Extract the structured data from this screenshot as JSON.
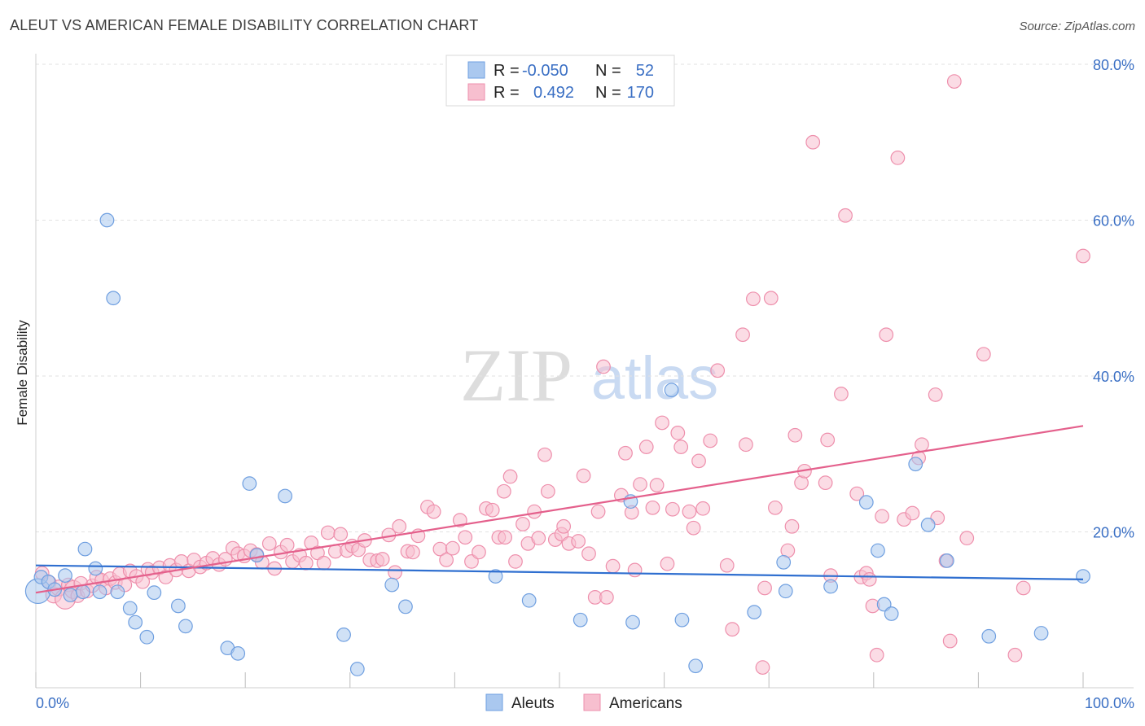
{
  "header": {
    "title": "ALEUT VS AMERICAN FEMALE DISABILITY CORRELATION CHART",
    "source": "Source: ZipAtlas.com"
  },
  "watermark": {
    "zip": "ZIP",
    "atlas": "atlas"
  },
  "colors": {
    "aleut_fill": "#aac8ef",
    "aleut_stroke": "#6f9fe0",
    "aleut_line": "#2f6fd0",
    "american_fill": "#f7bfcf",
    "american_stroke": "#ee8fac",
    "american_line": "#e4608c",
    "tick_label": "#3a6fc4"
  },
  "legend": {
    "rows": [
      {
        "r_label": "R =",
        "r_value": "-0.050",
        "n_label": "N =",
        "n_value": "52"
      },
      {
        "r_label": "R =",
        "r_value": "0.492",
        "n_label": "N =",
        "n_value": "170"
      }
    ]
  },
  "bottom_legend": {
    "aleuts": "Aleuts",
    "americans": "Americans"
  },
  "chart_data": {
    "type": "scatter",
    "title": "ALEUT VS AMERICAN FEMALE DISABILITY CORRELATION CHART",
    "xlabel": "",
    "ylabel": "Female Disability",
    "xlim": [
      0,
      100
    ],
    "ylim": [
      0,
      80
    ],
    "x_tick_labels": [
      "0.0%",
      "100.0%"
    ],
    "y_ticks": [
      20,
      40,
      60,
      80
    ],
    "y_tick_labels": [
      "20.0%",
      "40.0%",
      "60.0%",
      "80.0%"
    ],
    "grid": true,
    "legend_position": "top-center",
    "series": [
      {
        "name": "Aleuts",
        "r": -0.05,
        "n": 52,
        "trend": {
          "x": [
            0,
            100
          ],
          "y": [
            15.7,
            13.9
          ]
        },
        "points": [
          [
            0.2,
            12.4,
            22
          ],
          [
            0.5,
            14.2,
            12
          ],
          [
            1.2,
            13.6,
            12
          ],
          [
            1.8,
            12.6,
            12
          ],
          [
            2.8,
            14.4,
            12
          ],
          [
            3.3,
            11.9,
            12
          ],
          [
            4.5,
            12.3,
            12
          ],
          [
            4.7,
            17.8,
            12
          ],
          [
            5.7,
            15.3,
            12
          ],
          [
            6.1,
            12.3,
            12
          ],
          [
            6.8,
            60.0,
            12
          ],
          [
            7.4,
            50.0,
            12
          ],
          [
            7.8,
            12.3,
            12
          ],
          [
            9.0,
            10.2,
            12
          ],
          [
            9.5,
            8.4,
            12
          ],
          [
            10.6,
            6.5,
            12
          ],
          [
            11.3,
            12.2,
            12
          ],
          [
            13.6,
            10.5,
            12
          ],
          [
            14.3,
            7.9,
            12
          ],
          [
            18.3,
            5.1,
            12
          ],
          [
            19.3,
            4.4,
            12
          ],
          [
            20.4,
            26.2,
            12
          ],
          [
            21.1,
            17.0,
            12
          ],
          [
            23.8,
            24.6,
            12
          ],
          [
            29.4,
            6.8,
            12
          ],
          [
            30.7,
            2.4,
            12
          ],
          [
            34.0,
            13.2,
            12
          ],
          [
            35.3,
            10.4,
            12
          ],
          [
            43.9,
            14.3,
            12
          ],
          [
            47.1,
            11.2,
            12
          ],
          [
            52.0,
            8.7,
            12
          ],
          [
            56.8,
            23.9,
            12
          ],
          [
            57.0,
            8.4,
            12
          ],
          [
            60.7,
            38.2,
            12
          ],
          [
            61.7,
            8.7,
            12
          ],
          [
            63.0,
            2.8,
            12
          ],
          [
            68.6,
            9.7,
            12
          ],
          [
            71.4,
            16.1,
            12
          ],
          [
            71.6,
            12.4,
            12
          ],
          [
            75.9,
            13.0,
            12
          ],
          [
            79.3,
            23.8,
            12
          ],
          [
            80.4,
            17.6,
            12
          ],
          [
            81.0,
            10.7,
            12
          ],
          [
            81.7,
            9.5,
            12
          ],
          [
            84.0,
            28.7,
            12
          ],
          [
            85.2,
            20.9,
            12
          ],
          [
            87.0,
            16.3,
            12
          ],
          [
            91.0,
            6.6,
            12
          ],
          [
            96.0,
            7.0,
            12
          ],
          [
            100.0,
            14.3,
            12
          ]
        ]
      },
      {
        "name": "Americans",
        "r": 0.492,
        "n": 170,
        "trend": {
          "x": [
            0,
            100
          ],
          "y": [
            12.2,
            33.6
          ]
        },
        "points": [
          [
            0.6,
            14.7,
            12
          ],
          [
            1.3,
            13.5,
            12
          ],
          [
            1.7,
            11.9,
            14
          ],
          [
            2.2,
            12.8,
            14
          ],
          [
            2.8,
            11.4,
            18
          ],
          [
            3.1,
            13.2,
            12
          ],
          [
            3.6,
            12.6,
            16
          ],
          [
            4.0,
            11.8,
            12
          ],
          [
            4.3,
            13.4,
            12
          ],
          [
            4.9,
            12.4,
            12
          ],
          [
            5.4,
            13.1,
            12
          ],
          [
            5.8,
            14.2,
            12
          ],
          [
            6.3,
            13.8,
            12
          ],
          [
            6.7,
            12.8,
            12
          ],
          [
            7.1,
            14.0,
            12
          ],
          [
            7.6,
            13.5,
            12
          ],
          [
            8.0,
            14.6,
            12
          ],
          [
            8.5,
            13.2,
            12
          ],
          [
            9.0,
            15.0,
            12
          ],
          [
            9.6,
            14.3,
            12
          ],
          [
            10.2,
            13.6,
            12
          ],
          [
            10.7,
            15.2,
            12
          ],
          [
            11.1,
            14.8,
            12
          ],
          [
            11.8,
            15.4,
            12
          ],
          [
            12.4,
            14.2,
            12
          ],
          [
            12.8,
            15.7,
            12
          ],
          [
            13.4,
            15.1,
            12
          ],
          [
            13.9,
            16.2,
            12
          ],
          [
            14.6,
            15.0,
            12
          ],
          [
            15.1,
            16.4,
            12
          ],
          [
            15.7,
            15.5,
            12
          ],
          [
            16.3,
            16.0,
            12
          ],
          [
            16.9,
            16.6,
            12
          ],
          [
            17.5,
            15.8,
            12
          ],
          [
            18.1,
            16.5,
            12
          ],
          [
            18.8,
            17.9,
            12
          ],
          [
            19.3,
            17.2,
            12
          ],
          [
            19.9,
            16.9,
            12
          ],
          [
            20.5,
            17.6,
            12
          ],
          [
            21.1,
            17.1,
            12
          ],
          [
            21.6,
            16.1,
            12
          ],
          [
            22.3,
            18.5,
            12
          ],
          [
            22.8,
            15.3,
            12
          ],
          [
            23.4,
            17.4,
            12
          ],
          [
            24.0,
            18.3,
            12
          ],
          [
            24.5,
            16.2,
            12
          ],
          [
            25.2,
            17.0,
            12
          ],
          [
            25.8,
            16.0,
            12
          ],
          [
            26.3,
            18.6,
            12
          ],
          [
            26.9,
            17.3,
            12
          ],
          [
            27.5,
            16.0,
            12
          ],
          [
            27.9,
            19.9,
            12
          ],
          [
            28.6,
            17.5,
            12
          ],
          [
            29.1,
            19.7,
            12
          ],
          [
            29.7,
            17.6,
            12
          ],
          [
            30.2,
            18.2,
            12
          ],
          [
            30.8,
            17.7,
            12
          ],
          [
            31.4,
            18.9,
            12
          ],
          [
            31.9,
            16.4,
            12
          ],
          [
            32.6,
            16.3,
            12
          ],
          [
            33.1,
            16.5,
            12
          ],
          [
            33.7,
            19.6,
            12
          ],
          [
            34.3,
            14.8,
            12
          ],
          [
            34.7,
            20.7,
            12
          ],
          [
            35.5,
            17.5,
            12
          ],
          [
            36.0,
            17.4,
            12
          ],
          [
            36.5,
            19.5,
            12
          ],
          [
            37.4,
            23.2,
            12
          ],
          [
            38.0,
            22.6,
            12
          ],
          [
            38.6,
            17.8,
            12
          ],
          [
            39.2,
            16.4,
            12
          ],
          [
            39.8,
            17.9,
            12
          ],
          [
            40.5,
            21.5,
            12
          ],
          [
            41.0,
            19.3,
            12
          ],
          [
            41.6,
            16.2,
            12
          ],
          [
            42.3,
            17.4,
            12
          ],
          [
            43.0,
            23.0,
            12
          ],
          [
            43.6,
            22.8,
            12
          ],
          [
            44.2,
            19.3,
            12
          ],
          [
            44.8,
            19.3,
            12
          ],
          [
            44.7,
            25.2,
            12
          ],
          [
            45.3,
            27.1,
            12
          ],
          [
            45.8,
            16.2,
            12
          ],
          [
            46.5,
            21.0,
            12
          ],
          [
            47.0,
            18.5,
            12
          ],
          [
            47.6,
            22.6,
            12
          ],
          [
            48.0,
            19.2,
            12
          ],
          [
            48.6,
            29.9,
            12
          ],
          [
            48.9,
            25.2,
            12
          ],
          [
            49.6,
            19.0,
            12
          ],
          [
            50.2,
            19.7,
            12
          ],
          [
            50.4,
            20.7,
            12
          ],
          [
            50.9,
            18.5,
            12
          ],
          [
            51.8,
            18.8,
            12
          ],
          [
            52.3,
            27.2,
            12
          ],
          [
            52.8,
            17.2,
            12
          ],
          [
            53.4,
            11.6,
            12
          ],
          [
            53.7,
            22.6,
            12
          ],
          [
            54.2,
            41.2,
            12
          ],
          [
            54.5,
            11.6,
            12
          ],
          [
            55.1,
            15.6,
            12
          ],
          [
            55.9,
            24.7,
            12
          ],
          [
            56.3,
            30.1,
            12
          ],
          [
            56.9,
            22.5,
            12
          ],
          [
            57.2,
            15.1,
            12
          ],
          [
            57.7,
            26.1,
            12
          ],
          [
            58.3,
            30.9,
            12
          ],
          [
            58.9,
            23.1,
            12
          ],
          [
            59.3,
            26.0,
            12
          ],
          [
            59.8,
            34.0,
            12
          ],
          [
            60.3,
            15.9,
            12
          ],
          [
            60.8,
            22.9,
            12
          ],
          [
            61.3,
            32.7,
            12
          ],
          [
            61.6,
            30.9,
            12
          ],
          [
            62.4,
            22.6,
            12
          ],
          [
            62.8,
            20.5,
            12
          ],
          [
            63.3,
            29.1,
            12
          ],
          [
            63.7,
            23.0,
            12
          ],
          [
            64.4,
            31.7,
            12
          ],
          [
            65.1,
            40.7,
            12
          ],
          [
            66.0,
            15.7,
            12
          ],
          [
            66.5,
            7.5,
            12
          ],
          [
            67.5,
            45.3,
            12
          ],
          [
            67.8,
            31.2,
            12
          ],
          [
            68.5,
            49.9,
            12
          ],
          [
            69.4,
            2.6,
            12
          ],
          [
            69.6,
            12.8,
            12
          ],
          [
            70.2,
            50.0,
            12
          ],
          [
            70.6,
            23.1,
            12
          ],
          [
            71.8,
            17.6,
            12
          ],
          [
            72.2,
            20.7,
            12
          ],
          [
            72.5,
            32.4,
            12
          ],
          [
            73.1,
            26.3,
            12
          ],
          [
            73.4,
            27.8,
            12
          ],
          [
            74.2,
            70.0,
            12
          ],
          [
            75.4,
            26.3,
            12
          ],
          [
            75.6,
            31.8,
            12
          ],
          [
            75.9,
            14.4,
            12
          ],
          [
            76.9,
            37.7,
            12
          ],
          [
            77.3,
            60.6,
            12
          ],
          [
            78.4,
            24.9,
            12
          ],
          [
            78.8,
            14.2,
            12
          ],
          [
            79.3,
            14.7,
            12
          ],
          [
            79.6,
            13.9,
            12
          ],
          [
            79.9,
            10.5,
            12
          ],
          [
            80.3,
            4.2,
            12
          ],
          [
            80.8,
            22.0,
            12
          ],
          [
            81.2,
            45.3,
            12
          ],
          [
            82.3,
            68.0,
            12
          ],
          [
            82.9,
            21.6,
            12
          ],
          [
            83.7,
            22.4,
            12
          ],
          [
            84.3,
            29.5,
            12
          ],
          [
            84.6,
            31.2,
            12
          ],
          [
            85.9,
            37.6,
            12
          ],
          [
            86.1,
            21.8,
            12
          ],
          [
            86.9,
            16.3,
            12
          ],
          [
            87.3,
            6.0,
            12
          ],
          [
            87.7,
            77.8,
            12
          ],
          [
            88.9,
            19.2,
            12
          ],
          [
            90.5,
            42.8,
            12
          ],
          [
            93.5,
            4.2,
            12
          ],
          [
            94.3,
            12.8,
            12
          ],
          [
            100.0,
            55.4,
            12
          ]
        ]
      }
    ]
  }
}
